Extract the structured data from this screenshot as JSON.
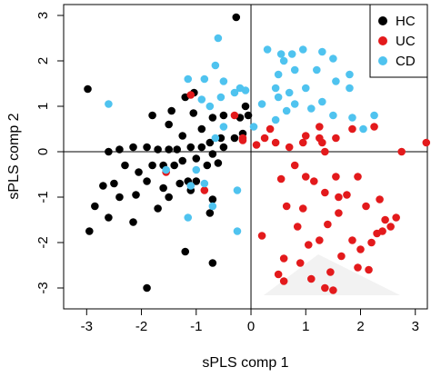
{
  "chart_data": {
    "type": "scatter",
    "x_label": "sPLS comp 1",
    "y_label": "sPLS comp 2",
    "xlim": [
      -3.42,
      3.22
    ],
    "ylim": [
      -3.46,
      3.24
    ],
    "xticks": [
      -3,
      -2,
      -1,
      0,
      1,
      2,
      3
    ],
    "yticks": [
      -3,
      -2,
      -1,
      0,
      1,
      2,
      3
    ],
    "reference_lines": {
      "x": 0,
      "y": 0
    },
    "legend": "top-right",
    "series": [
      {
        "name": "HC",
        "color": "#000000",
        "x": [
          -2.98,
          -0.27,
          -1.04,
          -1.2,
          -1.45,
          -1.5,
          -1.8,
          -1.05,
          -0.7,
          -0.5,
          -0.2,
          -0.05,
          -0.9,
          -1.25,
          -0.55,
          -0.75,
          -2.15,
          -1.9,
          -1.7,
          -1.5,
          -1.35,
          -1.1,
          -0.9,
          -0.5,
          -0.3,
          -0.15,
          -2.6,
          -2.4,
          -0.7,
          -0.6,
          -0.8,
          -1.0,
          -1.25,
          -1.4,
          -1.6,
          -1.8,
          -2.05,
          -2.3,
          -1.9,
          -1.6,
          -1.3,
          -1.0,
          -1.1,
          -2.5,
          -2.7,
          -2.4,
          -2.1,
          -1.7,
          -1.5,
          -0.7,
          -0.75,
          -2.85,
          -2.6,
          -2.95,
          -2.15,
          -1.2,
          -0.7,
          -1.9,
          -0.1,
          -1.15
        ],
        "y": [
          1.38,
          2.96,
          1.3,
          1.2,
          0.9,
          0.6,
          0.8,
          0.85,
          0.75,
          0.8,
          0.75,
          0.8,
          0.5,
          0.35,
          0.3,
          0.2,
          0.1,
          0.1,
          0.05,
          0.05,
          0.05,
          0.1,
          0.1,
          0.1,
          0.3,
          0.4,
          0.0,
          0.05,
          -0.05,
          -0.25,
          -0.3,
          -0.15,
          -0.2,
          -0.3,
          -0.3,
          -0.3,
          -0.45,
          -0.3,
          -0.65,
          -0.8,
          -0.7,
          -0.65,
          -0.85,
          -0.7,
          -0.75,
          -1.0,
          -0.95,
          -1.25,
          -1.0,
          -1.05,
          -1.35,
          -1.2,
          -1.45,
          -1.75,
          -1.55,
          -2.2,
          -2.45,
          -3.0,
          1.0,
          -0.65
        ]
      },
      {
        "name": "UC",
        "color": "#e31a1c",
        "x": [
          -1.55,
          -1.1,
          -0.3,
          -0.85,
          -0.15,
          0.1,
          0.25,
          0.45,
          0.35,
          -0.15,
          0.7,
          0.95,
          1.0,
          1.25,
          1.3,
          1.25,
          1.55,
          1.85,
          1.35,
          2.25,
          2.75,
          3.2,
          0.8,
          1.0,
          1.15,
          1.55,
          1.95,
          0.55,
          0.65,
          0.95,
          1.35,
          1.6,
          1.75,
          2.1,
          2.35,
          2.45,
          2.4,
          2.3,
          2.55,
          2.65,
          2.2,
          1.6,
          1.4,
          1.25,
          1.05,
          0.85,
          0.6,
          0.9,
          0.5,
          0.2,
          1.1,
          1.45,
          1.65,
          1.95,
          2.0,
          2.15,
          1.5,
          0.6,
          1.35,
          1.85
        ],
        "y": [
          -0.45,
          1.25,
          0.8,
          -0.85,
          0.3,
          0.15,
          0.3,
          0.2,
          0.5,
          0.25,
          0.1,
          0.2,
          0.35,
          0.55,
          0.2,
          0.3,
          0.3,
          0.5,
          0.0,
          0.55,
          0.0,
          0.2,
          -0.3,
          -0.55,
          -0.65,
          -0.55,
          -0.55,
          -0.6,
          -1.2,
          -1.25,
          -0.9,
          -1.0,
          -0.95,
          -1.2,
          -1.05,
          -1.5,
          -1.75,
          -1.8,
          -1.65,
          -1.45,
          -2.0,
          -1.35,
          -1.6,
          -1.95,
          -2.05,
          -1.65,
          -2.35,
          -2.45,
          -2.7,
          -1.85,
          -2.8,
          -2.65,
          -2.3,
          -2.55,
          -2.15,
          -2.6,
          -3.05,
          -2.85,
          -3.0,
          -1.95
        ]
      },
      {
        "name": "CD",
        "color": "#4fc3ef",
        "x": [
          -0.6,
          -0.65,
          -0.85,
          -0.5,
          -0.2,
          -0.1,
          -0.3,
          -0.55,
          -0.75,
          -0.9,
          -2.6,
          -1.15,
          0.3,
          0.55,
          0.75,
          0.6,
          0.95,
          1.3,
          1.5,
          1.2,
          0.8,
          0.5,
          0.45,
          0.7,
          1.0,
          1.55,
          1.8,
          0.8,
          1.1,
          1.3,
          0.65,
          0.2,
          0.45,
          1.5,
          1.85,
          2.05,
          1.8,
          2.25,
          0.5,
          0.05,
          -0.5,
          -0.65,
          -0.85,
          -1.0,
          -1.1,
          -1.15,
          -0.7,
          -0.25,
          -0.25,
          -1.55
        ],
        "y": [
          2.5,
          1.9,
          1.6,
          1.55,
          1.4,
          1.35,
          1.3,
          1.2,
          1.0,
          1.15,
          1.05,
          1.6,
          2.25,
          2.15,
          2.15,
          2.0,
          2.25,
          2.2,
          2.05,
          1.8,
          1.8,
          1.7,
          1.4,
          1.3,
          1.4,
          1.55,
          1.4,
          1.05,
          0.95,
          1.1,
          0.9,
          1.05,
          0.7,
          0.8,
          0.75,
          0.5,
          1.7,
          0.8,
          1.2,
          0.55,
          0.55,
          0.3,
          -0.7,
          -0.4,
          -0.75,
          -1.45,
          -1.2,
          -0.85,
          -1.75,
          -0.4
        ]
      }
    ]
  }
}
